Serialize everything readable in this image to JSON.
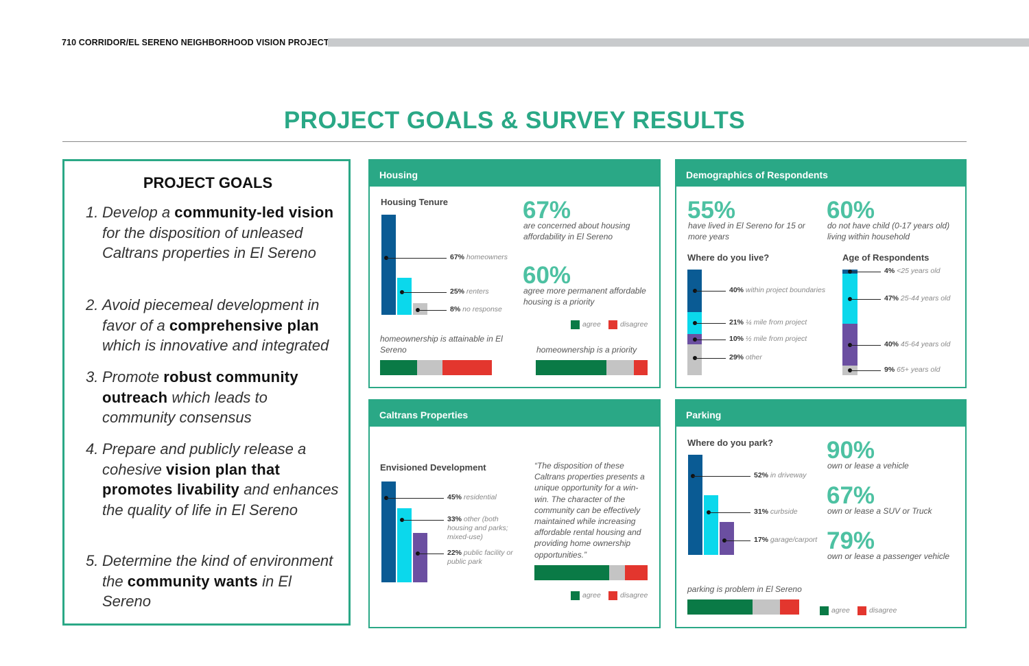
{
  "header": {
    "text": "710 CORRIDOR/EL SERENO NEIGHBORHOOD VISION PROJECT"
  },
  "title": "PROJECT GOALS & SURVEY RESULTS",
  "colors": {
    "accent": "#2aa886",
    "accent_light": "#4dc1a2",
    "navy": "#0a5b94",
    "cyan": "#0bd8ec",
    "purple": "#6b4fa1",
    "gray": "#c4c4c4",
    "agree": "#0a7a46",
    "disagree": "#e3362e"
  },
  "goals": {
    "heading": "PROJECT GOALS",
    "items": [
      {
        "num": "1.",
        "parts": [
          {
            "t": "Develop a ",
            "b": false
          },
          {
            "t": "community-led vision",
            "b": true
          },
          {
            "t": " for the disposition of unleased Caltrans properties in El Sereno",
            "b": false
          }
        ]
      },
      {
        "num": "2.",
        "parts": [
          {
            "t": "Avoid piecemeal development in favor of a ",
            "b": false
          },
          {
            "t": "comprehensive plan",
            "b": true
          },
          {
            "t": " which is innovative and integrated",
            "b": false
          }
        ]
      },
      {
        "num": "3.",
        "parts": [
          {
            "t": "Promote ",
            "b": false
          },
          {
            "t": "robust community outreach",
            "b": true
          },
          {
            "t": " which leads to community consensus",
            "b": false
          }
        ]
      },
      {
        "num": "4.",
        "parts": [
          {
            "t": "Prepare and publicly release a cohesive ",
            "b": false
          },
          {
            "t": "vision plan that promotes livability",
            "b": true
          },
          {
            "t": " and enhances the quality of life in El Sereno",
            "b": false
          }
        ]
      },
      {
        "num": "5.",
        "parts": [
          {
            "t": "Determine the kind of environment the ",
            "b": false
          },
          {
            "t": "community wants",
            "b": true
          },
          {
            "t": " in El Sereno",
            "b": false
          }
        ]
      }
    ]
  },
  "legend": {
    "agree": "agree",
    "disagree": "disagree"
  },
  "housing": {
    "title": "Housing",
    "tenure_title": "Housing Tenure",
    "stat1": {
      "value": "67%",
      "caption": "are concerned about housing affordability in El Sereno"
    },
    "stat2": {
      "value": "60%",
      "caption": "agree more permanent affordable housing is a priority"
    },
    "bar1_label": "homeownership is attainable in El Sereno",
    "bar2_label": "homeownership is a priority"
  },
  "demographics": {
    "title": "Demographics of Respondents",
    "stat1": {
      "value": "55%",
      "caption": "have lived in El Sereno for 15 or more years"
    },
    "stat2": {
      "value": "60%",
      "caption": "do not have child (0-17 years old) living within household"
    },
    "live_title": "Where do you live?",
    "age_title": "Age of Respondents"
  },
  "caltrans": {
    "title": "Caltrans Properties",
    "dev_title": "Envisioned Development",
    "quote": "“The disposition of these Caltrans properties presents a unique opportunity for a win-win. The character of the community can be effectively maintained while increasing affordable rental housing and providing home ownership opportunities.”"
  },
  "parking": {
    "title": "Parking",
    "park_title": "Where do you park?",
    "stat1": {
      "value": "90%",
      "caption": "own or lease a vehicle"
    },
    "stat2": {
      "value": "67%",
      "caption": "own or lease a SUV or Truck"
    },
    "stat3": {
      "value": "79%",
      "caption": "own or lease a passenger vehicle"
    },
    "bar_label": "parking is problem in El Sereno"
  },
  "chart_data": [
    {
      "type": "bar",
      "id": "tenure",
      "categories": [
        "homeowners",
        "renters",
        "no response"
      ],
      "values": [
        67,
        25,
        8
      ],
      "labels": [
        "67%",
        "25%",
        "8%"
      ]
    },
    {
      "type": "bar",
      "id": "stacked-attainable",
      "series": [
        {
          "name": "agree",
          "values": [
            33
          ]
        },
        {
          "name": "neutral",
          "values": [
            23
          ]
        },
        {
          "name": "disagree",
          "values": [
            44
          ]
        }
      ]
    },
    {
      "type": "bar",
      "id": "stacked-priority",
      "series": [
        {
          "name": "agree",
          "values": [
            63
          ]
        },
        {
          "name": "neutral",
          "values": [
            25
          ]
        },
        {
          "name": "disagree",
          "values": [
            12
          ]
        }
      ]
    },
    {
      "type": "bar",
      "id": "live",
      "categories": [
        "within project boundaries",
        "¼ mile from project",
        "½ mile from project",
        "other"
      ],
      "values": [
        40,
        21,
        10,
        29
      ],
      "labels": [
        "40%",
        "21%",
        "10%",
        "29%"
      ]
    },
    {
      "type": "bar",
      "id": "age",
      "categories": [
        "<25 years old",
        "25-44 years old",
        "45-64 years old",
        "65+ years old"
      ],
      "values": [
        4,
        47,
        40,
        9
      ],
      "labels": [
        "4%",
        "47%",
        "40%",
        "9%"
      ]
    },
    {
      "type": "bar",
      "id": "development",
      "categories": [
        "residential",
        "other (both housing and parks; mixed-use)",
        "public facility or public park"
      ],
      "values": [
        45,
        33,
        22
      ],
      "labels": [
        "45%",
        "33%",
        "22%"
      ]
    },
    {
      "type": "bar",
      "id": "stacked-caltrans",
      "series": [
        {
          "name": "agree",
          "values": [
            66
          ]
        },
        {
          "name": "neutral",
          "values": [
            14
          ]
        },
        {
          "name": "disagree",
          "values": [
            20
          ]
        }
      ]
    },
    {
      "type": "bar",
      "id": "park",
      "categories": [
        "in driveway",
        "curbside",
        "garage/carport"
      ],
      "values": [
        52,
        31,
        17
      ],
      "labels": [
        "52%",
        "31%",
        "17%"
      ]
    },
    {
      "type": "bar",
      "id": "stacked-parking",
      "series": [
        {
          "name": "agree",
          "values": [
            58
          ]
        },
        {
          "name": "neutral",
          "values": [
            25
          ]
        },
        {
          "name": "disagree",
          "values": [
            17
          ]
        }
      ]
    }
  ]
}
